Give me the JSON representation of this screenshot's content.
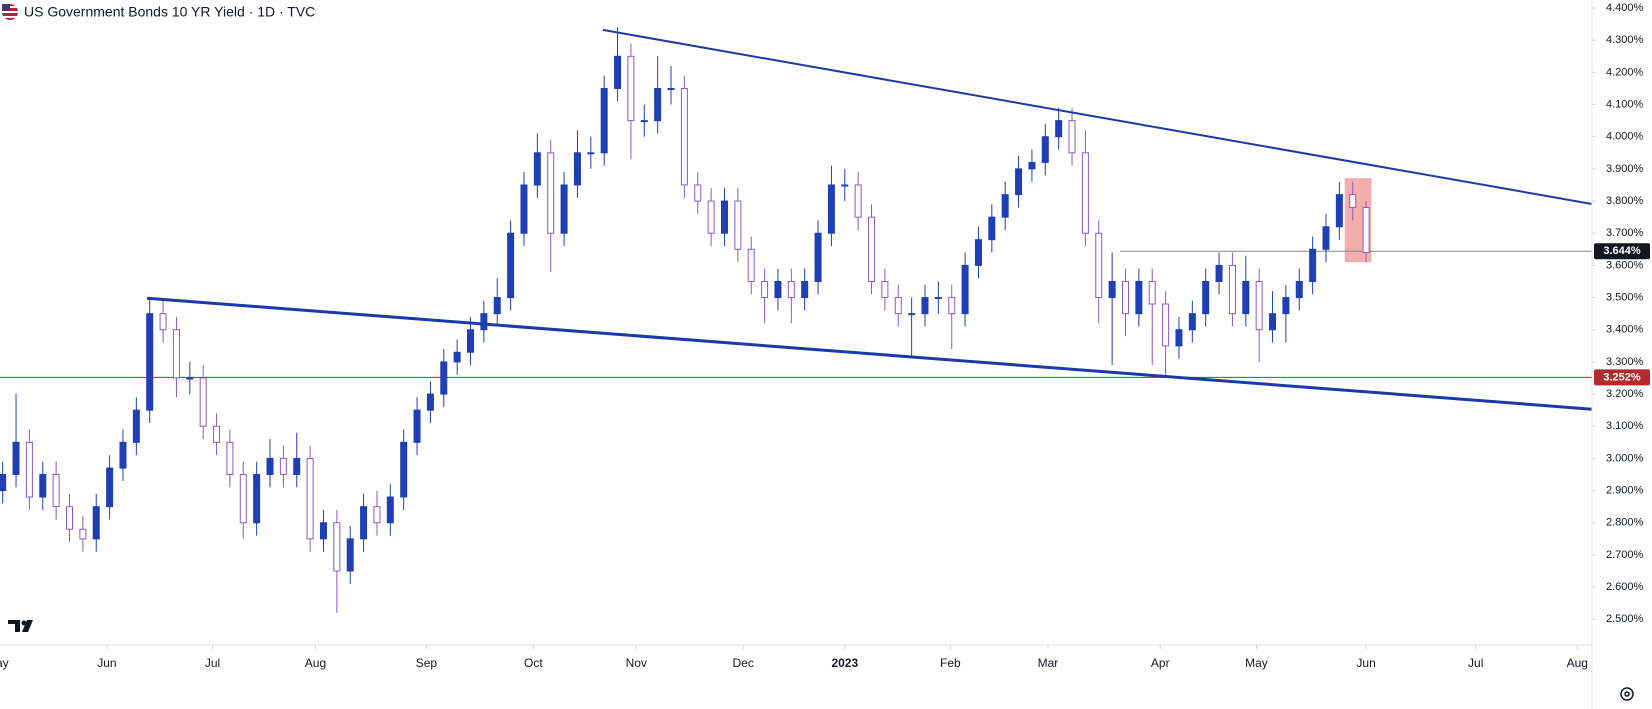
{
  "chart_data": {
    "type": "candlestick",
    "title": "US Government Bonds 10 YR Yield · 1D · TVC",
    "up_color": "#1f3fb5",
    "down_color": "#ffffff",
    "down_border": "#8a5cc0",
    "open": [
      2.9,
      2.95,
      3.05,
      2.88,
      2.95,
      2.85,
      2.78,
      2.75,
      2.85,
      2.97,
      3.05,
      3.15,
      3.45,
      3.4,
      3.25,
      3.25,
      3.1,
      3.05,
      2.95,
      2.8,
      2.95,
      3.0,
      2.95,
      3.0,
      2.75,
      2.8,
      2.65,
      2.75,
      2.85,
      2.8,
      2.88,
      3.05,
      3.15,
      3.2,
      3.3,
      3.33,
      3.4,
      3.45,
      3.5,
      3.7,
      3.85,
      3.95,
      3.7,
      3.85,
      3.95,
      3.95,
      4.15,
      4.25,
      4.05,
      4.05,
      4.15,
      4.15,
      3.85,
      3.8,
      3.7,
      3.8,
      3.65,
      3.55,
      3.5,
      3.55,
      3.5,
      3.55,
      3.7,
      3.85,
      3.85,
      3.75,
      3.55,
      3.5,
      3.45,
      3.45,
      3.5,
      3.5,
      3.45,
      3.6,
      3.68,
      3.75,
      3.82,
      3.9,
      3.92,
      4.0,
      4.05,
      3.95,
      3.7,
      3.5,
      3.55,
      3.45,
      3.55,
      3.48,
      3.35,
      3.4,
      3.45,
      3.55,
      3.6,
      3.45,
      3.55,
      3.4,
      3.45,
      3.5,
      3.55,
      3.65,
      3.72,
      3.82,
      3.78
    ],
    "high": [
      2.99,
      3.2,
      3.09,
      2.99,
      2.99,
      2.89,
      2.82,
      2.89,
      3.01,
      3.09,
      3.19,
      3.5,
      3.49,
      3.44,
      3.3,
      3.29,
      3.14,
      3.09,
      2.99,
      2.99,
      3.06,
      3.04,
      3.08,
      3.04,
      2.84,
      2.84,
      2.79,
      2.89,
      2.9,
      2.92,
      3.09,
      3.19,
      3.24,
      3.34,
      3.37,
      3.44,
      3.49,
      3.56,
      3.74,
      3.89,
      4.01,
      3.99,
      3.89,
      4.02,
      4.0,
      4.19,
      4.34,
      4.29,
      4.1,
      4.25,
      4.22,
      4.19,
      3.89,
      3.84,
      3.84,
      3.84,
      3.69,
      3.59,
      3.59,
      3.59,
      3.59,
      3.74,
      3.91,
      3.9,
      3.89,
      3.79,
      3.59,
      3.54,
      3.5,
      3.54,
      3.55,
      3.54,
      3.64,
      3.72,
      3.79,
      3.86,
      3.94,
      3.96,
      4.04,
      4.09,
      4.09,
      4.02,
      3.74,
      3.64,
      3.59,
      3.59,
      3.59,
      3.52,
      3.44,
      3.49,
      3.59,
      3.64,
      3.64,
      3.63,
      3.59,
      3.52,
      3.54,
      3.59,
      3.69,
      3.76,
      3.86,
      3.86,
      3.8
    ],
    "low": [
      2.86,
      2.91,
      2.84,
      2.84,
      2.81,
      2.74,
      2.71,
      2.71,
      2.81,
      2.93,
      3.01,
      3.11,
      3.36,
      3.19,
      3.2,
      3.06,
      3.01,
      2.91,
      2.75,
      2.76,
      2.91,
      2.91,
      2.91,
      2.71,
      2.71,
      2.52,
      2.61,
      2.71,
      2.76,
      2.76,
      2.84,
      3.01,
      3.11,
      3.16,
      3.26,
      3.29,
      3.36,
      3.41,
      3.46,
      3.66,
      3.81,
      3.58,
      3.66,
      3.81,
      3.9,
      3.91,
      4.11,
      3.93,
      4.0,
      4.01,
      4.1,
      3.81,
      3.76,
      3.66,
      3.66,
      3.61,
      3.51,
      3.42,
      3.46,
      3.42,
      3.46,
      3.51,
      3.66,
      3.8,
      3.71,
      3.51,
      3.46,
      3.41,
      3.32,
      3.41,
      3.45,
      3.34,
      3.41,
      3.56,
      3.64,
      3.71,
      3.78,
      3.86,
      3.88,
      3.96,
      3.91,
      3.66,
      3.42,
      3.29,
      3.38,
      3.41,
      3.29,
      3.25,
      3.31,
      3.36,
      3.41,
      3.51,
      3.41,
      3.41,
      3.3,
      3.36,
      3.36,
      3.46,
      3.51,
      3.61,
      3.68,
      3.74,
      3.61
    ],
    "close": [
      2.95,
      3.05,
      2.88,
      2.95,
      2.85,
      2.78,
      2.75,
      2.85,
      2.97,
      3.05,
      3.15,
      3.45,
      3.4,
      3.25,
      3.25,
      3.1,
      3.05,
      2.95,
      2.8,
      2.95,
      3.0,
      2.95,
      3.0,
      2.75,
      2.8,
      2.65,
      2.75,
      2.85,
      2.8,
      2.88,
      3.05,
      3.15,
      3.2,
      3.3,
      3.33,
      3.4,
      3.45,
      3.5,
      3.7,
      3.85,
      3.95,
      3.7,
      3.85,
      3.95,
      3.95,
      4.15,
      4.25,
      4.05,
      4.05,
      4.15,
      4.15,
      3.85,
      3.8,
      3.7,
      3.8,
      3.65,
      3.55,
      3.5,
      3.55,
      3.5,
      3.55,
      3.7,
      3.85,
      3.85,
      3.75,
      3.55,
      3.5,
      3.45,
      3.45,
      3.5,
      3.5,
      3.45,
      3.6,
      3.68,
      3.75,
      3.82,
      3.9,
      3.92,
      4.0,
      4.05,
      3.95,
      3.7,
      3.5,
      3.55,
      3.45,
      3.55,
      3.48,
      3.35,
      3.4,
      3.45,
      3.55,
      3.6,
      3.45,
      3.55,
      3.4,
      3.45,
      3.5,
      3.55,
      3.65,
      3.72,
      3.82,
      3.78,
      3.64
    ],
    "xlim": [
      -0.2,
      118.9
    ],
    "xticks": [
      {
        "value": -0.4,
        "label": "May"
      },
      {
        "value": 7.8,
        "label": "Jun"
      },
      {
        "value": 15.7,
        "label": "Jul"
      },
      {
        "value": 23.4,
        "label": "Aug"
      },
      {
        "value": 31.7,
        "label": "Sep"
      },
      {
        "value": 39.7,
        "label": "Oct"
      },
      {
        "value": 47.4,
        "label": "Nov"
      },
      {
        "value": 55.4,
        "label": "Dec"
      },
      {
        "value": 63.0,
        "label": "2023"
      },
      {
        "value": 70.9,
        "label": "Feb"
      },
      {
        "value": 78.2,
        "label": "Mar"
      },
      {
        "value": 86.6,
        "label": "Apr"
      },
      {
        "value": 93.8,
        "label": "May"
      },
      {
        "value": 102.0,
        "label": "Jun"
      },
      {
        "value": 110.2,
        "label": "Jul"
      },
      {
        "value": 117.8,
        "label": "Aug"
      }
    ],
    "ylim": [
      2.42,
      4.425
    ],
    "yticks": [
      {
        "value": 2.5,
        "label": "2.500%"
      },
      {
        "value": 2.6,
        "label": "2.600%"
      },
      {
        "value": 2.7,
        "label": "2.700%"
      },
      {
        "value": 2.8,
        "label": "2.800%"
      },
      {
        "value": 2.9,
        "label": "2.900%"
      },
      {
        "value": 3.0,
        "label": "3.000%"
      },
      {
        "value": 3.1,
        "label": "3.100%"
      },
      {
        "value": 3.2,
        "label": "3.200%"
      },
      {
        "value": 3.3,
        "label": "3.300%"
      },
      {
        "value": 3.4,
        "label": "3.400%"
      },
      {
        "value": 3.5,
        "label": "3.500%"
      },
      {
        "value": 3.6,
        "label": "3.600%"
      },
      {
        "value": 3.7,
        "label": "3.700%"
      },
      {
        "value": 3.8,
        "label": "3.800%"
      },
      {
        "value": 3.9,
        "label": "3.900%"
      },
      {
        "value": 4.0,
        "label": "4.000%"
      },
      {
        "value": 4.1,
        "label": "4.100%"
      },
      {
        "value": 4.2,
        "label": "4.200%"
      },
      {
        "value": 4.3,
        "label": "4.300%"
      },
      {
        "value": 4.4,
        "label": "4.400%"
      }
    ],
    "trendlines": [
      {
        "x": [
          44.9,
          118.9
        ],
        "y": [
          4.332,
          3.791
        ],
        "color": "#1b3aa8"
      },
      {
        "x": [
          10.8,
          118.9
        ],
        "y": [
          3.498,
          3.153
        ],
        "color": "#1b3aa8"
      }
    ],
    "hlines": [
      {
        "value": 3.644,
        "label": "3.644%",
        "x_start": 83.6,
        "color": "#888888",
        "label_color": "#131722"
      },
      {
        "value": 3.252,
        "label": "3.252%",
        "x_start": -0.2,
        "color": "#a83232",
        "label_color": "#b22a2a"
      }
    ],
    "highlight": {
      "x": [
        100.4,
        102.4
      ],
      "y": [
        3.61,
        3.871
      ],
      "color": "#f08a8a"
    }
  }
}
